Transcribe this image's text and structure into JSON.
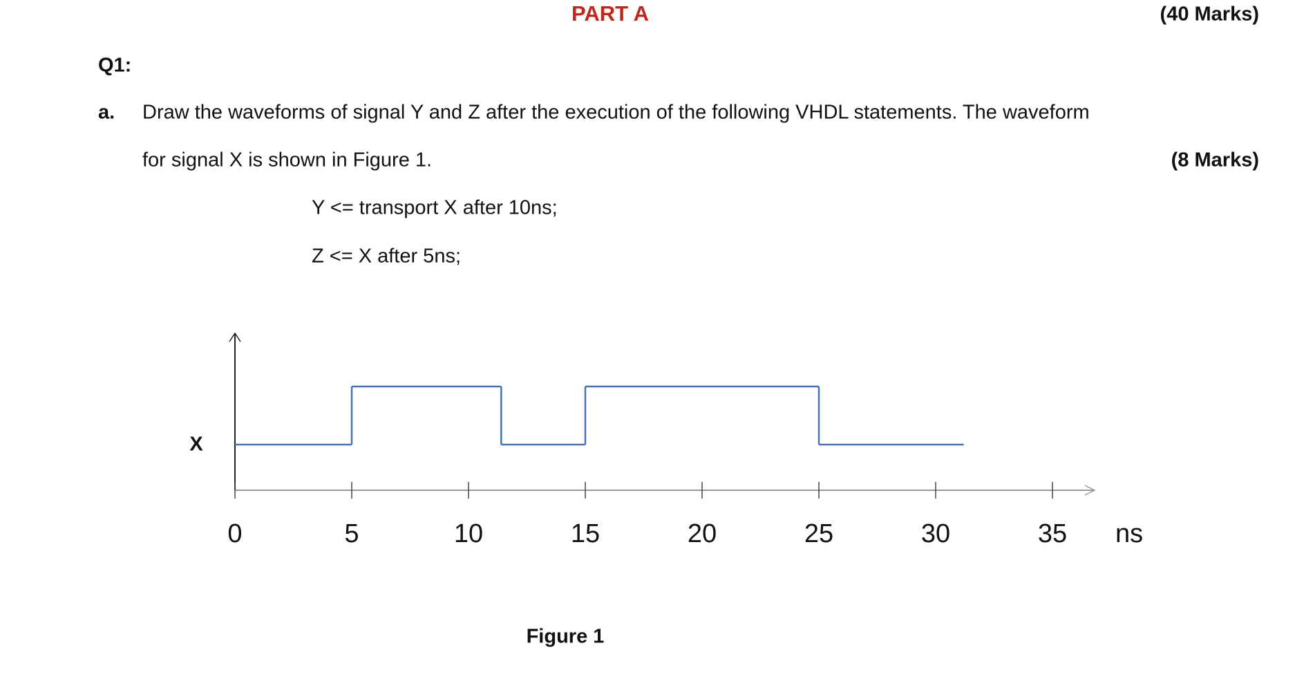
{
  "document": {
    "part": "PART A",
    "part_marks": "(40 Marks)",
    "question": "Q1:",
    "item_label": "a.",
    "item_text_1": "Draw the waveforms of signal Y and Z after the execution of the following VHDL statements. The waveform",
    "item_text_2": "for signal X is shown in Figure 1.",
    "item_marks": "(8 Marks)",
    "code_1": "Y <= transport X after 10ns;",
    "code_2": "Z <= X after 5ns;"
  },
  "chart_data": {
    "type": "waveform",
    "signal_label": "X",
    "x_unit": "ns",
    "caption": "Figure 1",
    "edges": [
      0,
      5,
      11.4,
      15,
      25,
      31.2
    ],
    "values": [
      0,
      1,
      0,
      1,
      0
    ],
    "color": "#4a72b0",
    "xlim": [
      0,
      37
    ],
    "ylim": [
      0,
      1
    ],
    "xticks": [
      0,
      5,
      10,
      15,
      20,
      25,
      30,
      35
    ]
  }
}
